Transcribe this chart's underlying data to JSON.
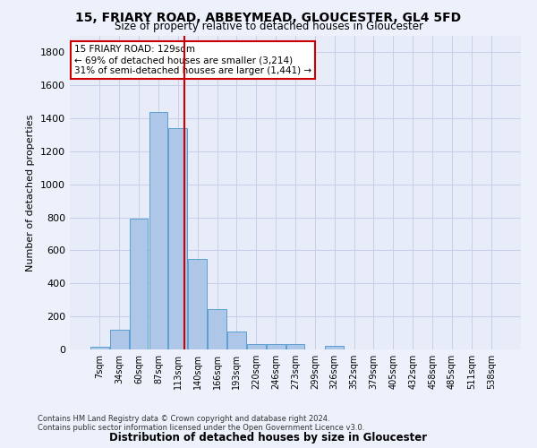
{
  "title1": "15, FRIARY ROAD, ABBEYMEAD, GLOUCESTER, GL4 5FD",
  "title2": "Size of property relative to detached houses in Gloucester",
  "xlabel": "Distribution of detached houses by size in Gloucester",
  "ylabel": "Number of detached properties",
  "footer1": "Contains HM Land Registry data © Crown copyright and database right 2024.",
  "footer2": "Contains public sector information licensed under the Open Government Licence v3.0.",
  "annotation_line1": "15 FRIARY ROAD: 129sqm",
  "annotation_line2": "← 69% of detached houses are smaller (3,214)",
  "annotation_line3": "31% of semi-detached houses are larger (1,441) →",
  "bar_labels": [
    "7sqm",
    "34sqm",
    "60sqm",
    "87sqm",
    "113sqm",
    "140sqm",
    "166sqm",
    "193sqm",
    "220sqm",
    "246sqm",
    "273sqm",
    "299sqm",
    "326sqm",
    "352sqm",
    "379sqm",
    "405sqm",
    "432sqm",
    "458sqm",
    "485sqm",
    "511sqm",
    "538sqm"
  ],
  "bar_values": [
    15,
    120,
    790,
    1440,
    1340,
    550,
    245,
    110,
    35,
    30,
    30,
    0,
    20,
    0,
    0,
    0,
    0,
    0,
    0,
    0,
    0
  ],
  "bar_color": "#aec6e8",
  "bar_edge_color": "#5a9fd4",
  "grid_color": "#c8cfe8",
  "bg_color": "#e8ecf8",
  "fig_bg_color": "#edf1fb",
  "red_line_x": 4.35,
  "vline_color": "#cc0000",
  "annotation_box_color": "#cc0000",
  "ylim": [
    0,
    1900
  ],
  "yticks": [
    0,
    200,
    400,
    600,
    800,
    1000,
    1200,
    1400,
    1600,
    1800
  ]
}
